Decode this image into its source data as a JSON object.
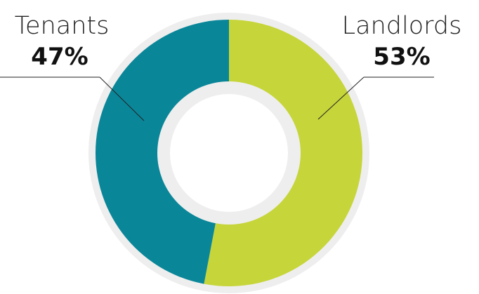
{
  "chart_data": {
    "type": "pie",
    "style": "donut",
    "categories": [
      "Tenants",
      "Landlords"
    ],
    "values": [
      47,
      53
    ],
    "value_labels": [
      "47%",
      "53%"
    ],
    "colors": [
      "#0a8699",
      "#c6d53a"
    ],
    "track_color": "#eeeeee",
    "title": "",
    "legend": "none"
  }
}
